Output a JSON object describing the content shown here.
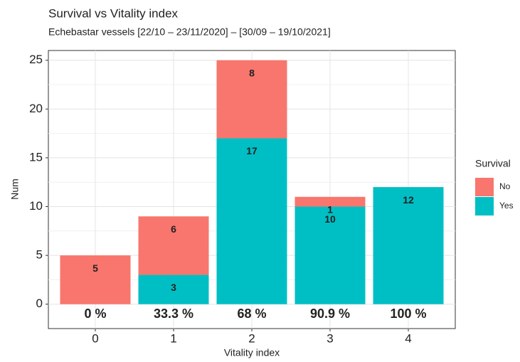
{
  "chart_data": {
    "type": "stacked-bar",
    "title": "Survival vs Vitality index",
    "subtitle": "Echebastar vessels [22/10 – 23/11/2020] – [30/09 – 19/10/2021]",
    "x_label": "Vitality index",
    "y_label": "Num",
    "categories": [
      "0",
      "1",
      "2",
      "3",
      "4"
    ],
    "series": [
      {
        "name": "Yes",
        "color": "#00bfc4",
        "values": [
          null,
          3,
          17,
          10,
          12
        ]
      },
      {
        "name": "No",
        "color": "#f8766d",
        "values": [
          5,
          6,
          8,
          1,
          null
        ]
      }
    ],
    "annotations": [
      "0 %",
      "33.3 %",
      "68 %",
      "90.9 %",
      "100 %"
    ],
    "legend_title": "Survival",
    "legend_order": [
      "No",
      "Yes"
    ],
    "legend_position": "right",
    "ylim": [
      -2.5,
      26
    ],
    "yticks": [
      0,
      5,
      10,
      15,
      20,
      25
    ],
    "grid": true
  }
}
